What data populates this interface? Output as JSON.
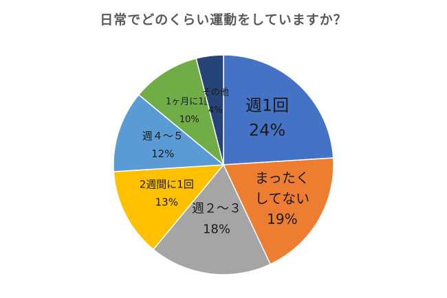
{
  "chart_data": {
    "type": "pie",
    "title": "日常でどのくらい運動をしていますか？",
    "slices": [
      {
        "label": "週1回",
        "value": 24,
        "value_label": "24%",
        "color": "#4472C4"
      },
      {
        "label": "まったくしてない",
        "value": 19,
        "value_label": "19%",
        "color": "#ED7D31"
      },
      {
        "label": "週２～３",
        "value": 18,
        "value_label": "18%",
        "color": "#A5A5A5"
      },
      {
        "label": "2週間に1回",
        "value": 13,
        "value_label": "13%",
        "color": "#FFC000"
      },
      {
        "label": "週４～５",
        "value": 12,
        "value_label": "12%",
        "color": "#5B9BD5"
      },
      {
        "label": "1ヶ月に1回",
        "value": 10,
        "value_label": "10%",
        "color": "#70AD47"
      },
      {
        "label": "その他",
        "value": 4,
        "value_label": "4%",
        "color": "#264478"
      }
    ],
    "start": "12 o'clock",
    "direction": "clockwise",
    "legend": "none"
  }
}
